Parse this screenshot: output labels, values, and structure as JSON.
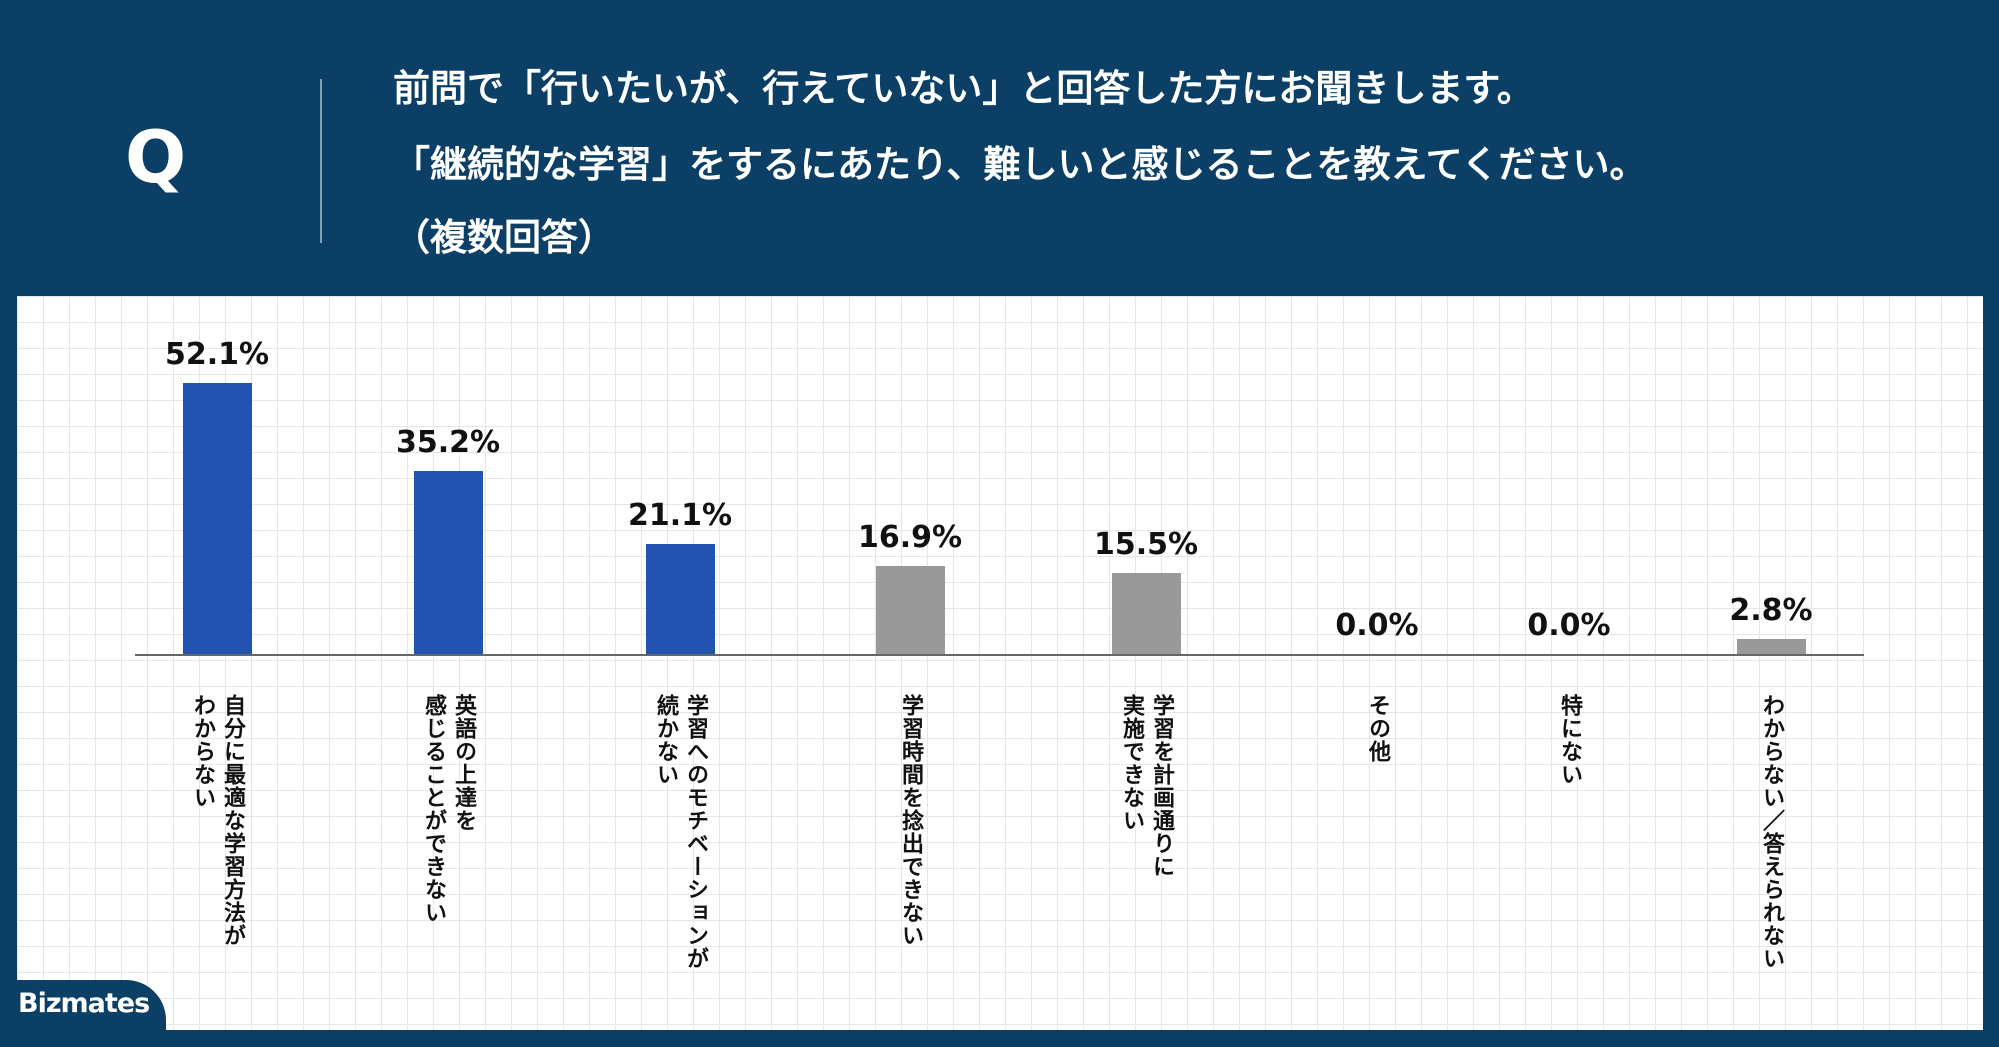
{
  "header": {
    "mark": "Q",
    "question": [
      "前問で「行いたいが、行えていない」と回答した方にお聞きします。",
      "「継続的な学習」をするにあたり、難しいと感じることを教えてください。",
      "（複数回答）"
    ]
  },
  "chart_data": {
    "type": "bar",
    "categories": [
      "自分に最適な学習方法が\nわからない",
      "英語の上達を\n感じることができない",
      "学習へのモチベーションが\n続かない",
      "学習時間を捻出できない",
      "学習を計画通りに\n実施できない",
      "その他",
      "特にない",
      "わからない／答えられない"
    ],
    "values": [
      52.1,
      35.2,
      21.1,
      16.9,
      15.5,
      0.0,
      0.0,
      2.8
    ],
    "value_labels": [
      "52.1%",
      "35.2%",
      "21.1%",
      "16.9%",
      "15.5%",
      "0.0%",
      "0.0%",
      "2.8%"
    ],
    "colors": [
      "#2253b0",
      "#2253b0",
      "#2253b0",
      "#999999",
      "#999999",
      "#999999",
      "#999999",
      "#999999"
    ]
  },
  "logo": "Bizmates"
}
